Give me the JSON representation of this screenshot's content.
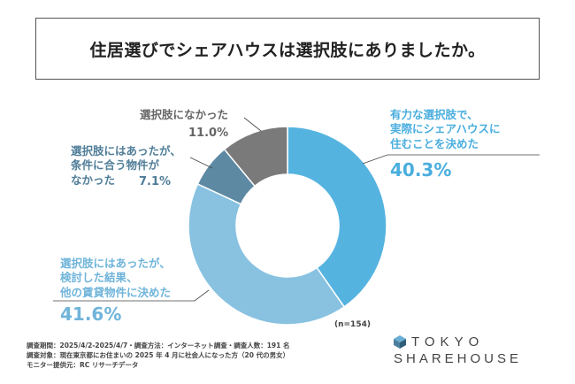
{
  "title": "住居選びでシェアハウスは選択肢にありましたか。",
  "chart_data": {
    "type": "donut",
    "sample_size": "(n=154)",
    "slices": [
      {
        "label_lines": [
          "有力な選択肢で、",
          "実際にシェアハウスに",
          "住むことを決めた"
        ],
        "value": 40.3,
        "value_label": "40.3%",
        "color": "#55b3e0"
      },
      {
        "label_lines": [
          "選択肢にはあったが、",
          "検討した結果、",
          "他の賃貸物件に決めた"
        ],
        "value": 41.6,
        "value_label": "41.6%",
        "color": "#89c2e1"
      },
      {
        "label_lines": [
          "選択肢にはあったが、",
          "条件に合う物件が",
          "なかった"
        ],
        "value": 7.1,
        "value_label": "7.1%",
        "color": "#5d89a3"
      },
      {
        "label_lines": [
          "選択肢になかった"
        ],
        "value": 11.0,
        "value_label": "11.0%",
        "color": "#7a7a7a"
      }
    ]
  },
  "footer": {
    "line1": "調査期間：2025/4/2-2025/4/7・調査方法：インターネット調査・調査人数：191 名",
    "line2": "調査対象：現在東京都にお住まいの 2025 年 4 月に社会人になった方（20 代の男女）",
    "line3": "モニター提供元：RC リサーチデータ"
  },
  "logo": {
    "line1": "TOKYO",
    "line2": "SHAREHOUSE"
  }
}
